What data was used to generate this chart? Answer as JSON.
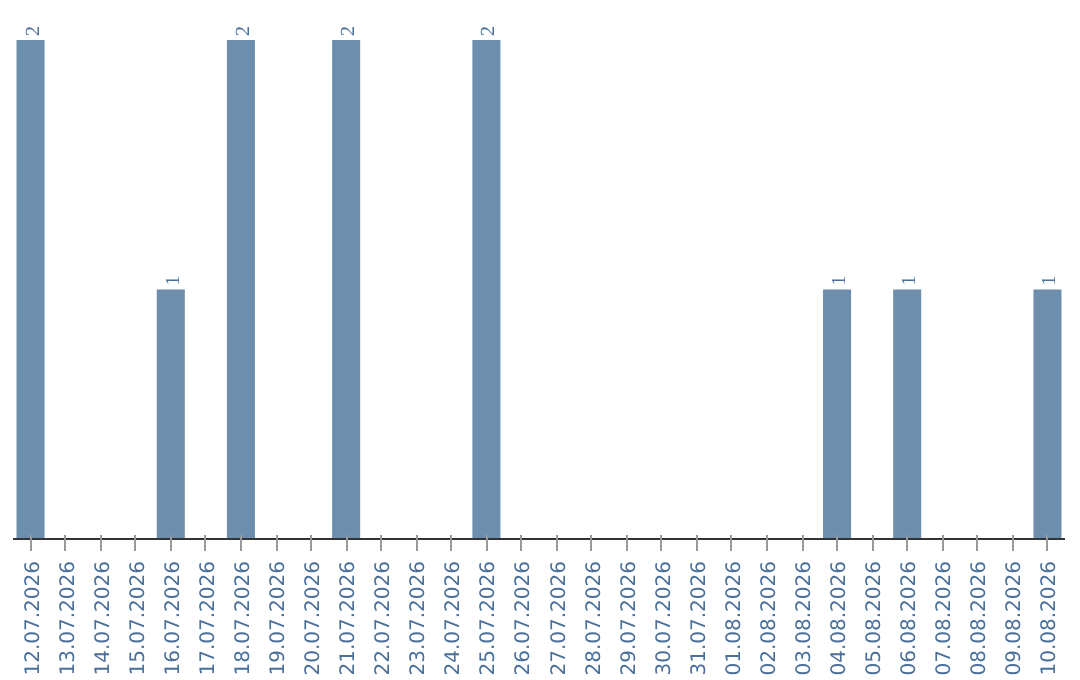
{
  "chart_data": {
    "type": "bar",
    "categories": [
      "12.07.2026",
      "13.07.2026",
      "14.07.2026",
      "15.07.2026",
      "16.07.2026",
      "17.07.2026",
      "18.07.2026",
      "19.07.2026",
      "20.07.2026",
      "21.07.2026",
      "22.07.2026",
      "23.07.2026",
      "24.07.2026",
      "25.07.2026",
      "26.07.2026",
      "27.07.2026",
      "28.07.2026",
      "29.07.2026",
      "30.07.2026",
      "31.07.2026",
      "01.08.2026",
      "02.08.2026",
      "03.08.2026",
      "04.08.2026",
      "05.08.2026",
      "06.08.2026",
      "07.08.2026",
      "08.08.2026",
      "09.08.2026",
      "10.08.2026"
    ],
    "values": [
      2,
      0,
      0,
      0,
      1,
      0,
      2,
      0,
      0,
      2,
      0,
      0,
      0,
      2,
      0,
      0,
      0,
      0,
      0,
      0,
      0,
      0,
      0,
      1,
      0,
      1,
      0,
      0,
      0,
      1
    ],
    "value_labels": [
      "2",
      null,
      null,
      null,
      "1",
      null,
      "2",
      null,
      null,
      "2",
      null,
      null,
      null,
      "2",
      null,
      null,
      null,
      null,
      null,
      null,
      null,
      null,
      null,
      "1",
      null,
      "1",
      null,
      null,
      null,
      "1"
    ],
    "color": "#6d8fad"
  }
}
